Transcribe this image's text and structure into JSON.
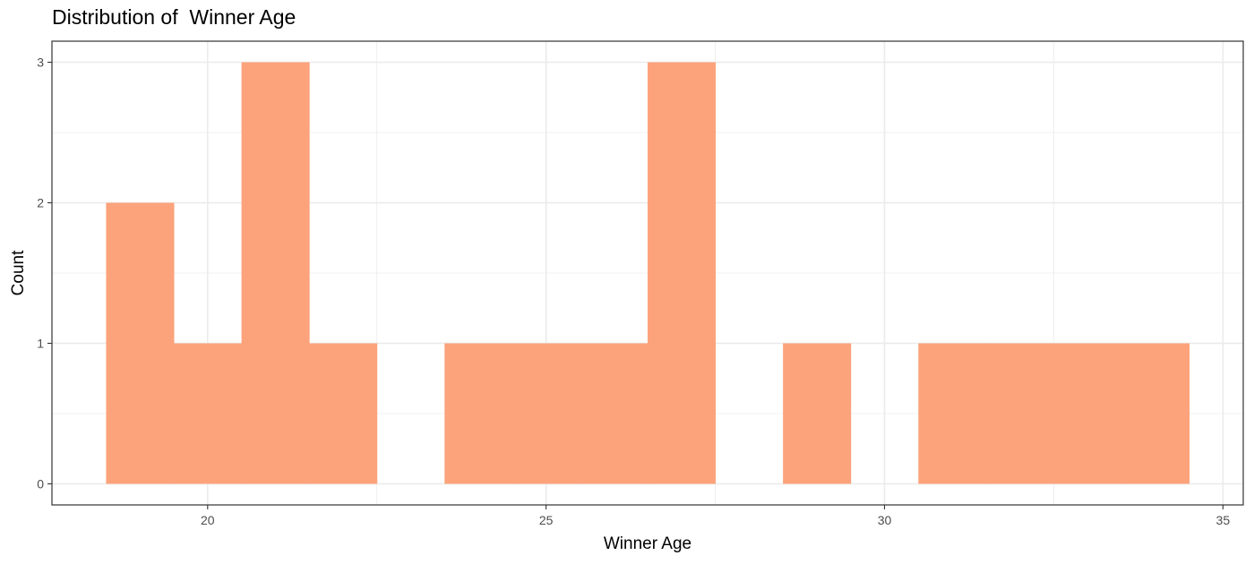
{
  "chart_data": {
    "type": "bar",
    "title": "Distribution of  Winner Age",
    "xlabel": "Winner Age",
    "ylabel": "Count",
    "bin_width": 1,
    "bins": [
      {
        "x": 19,
        "count": 2
      },
      {
        "x": 20,
        "count": 1
      },
      {
        "x": 21,
        "count": 3
      },
      {
        "x": 22,
        "count": 1
      },
      {
        "x": 24,
        "count": 1
      },
      {
        "x": 25,
        "count": 1
      },
      {
        "x": 26,
        "count": 1
      },
      {
        "x": 27,
        "count": 3
      },
      {
        "x": 29,
        "count": 1
      },
      {
        "x": 31,
        "count": 1
      },
      {
        "x": 32,
        "count": 1
      },
      {
        "x": 33,
        "count": 1
      },
      {
        "x": 34,
        "count": 1
      }
    ],
    "xlim": [
      17.7,
      35.3
    ],
    "ylim": [
      -0.15,
      3.15
    ],
    "x_ticks": [
      20,
      25,
      30,
      35
    ],
    "y_ticks": [
      0,
      1,
      2,
      3
    ],
    "grid": true,
    "bar_color": "#fca37c",
    "grid_color": "#ebebeb"
  }
}
